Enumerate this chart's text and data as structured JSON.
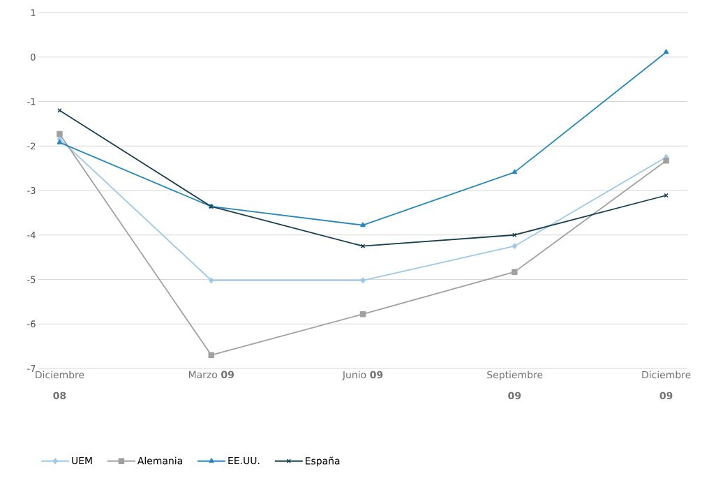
{
  "chart_data": {
    "type": "line",
    "categories": [
      "Diciembre **08**",
      "Marzo **09**",
      "Junio **09**",
      "Septiembre **09**",
      "Diciembre **09**"
    ],
    "series": [
      {
        "name": "UEM",
        "color": "#9dc8e8",
        "marker": "diamond",
        "values": [
          -1.84,
          -5.02,
          -5.02,
          -4.25,
          -2.25
        ]
      },
      {
        "name": "Alemania",
        "color": "#a0a0a0",
        "marker": "square",
        "values": [
          -1.73,
          -6.7,
          -5.78,
          -4.83,
          -2.33
        ]
      },
      {
        "name": "EE.UU.",
        "color": "#2589b9",
        "marker": "triangle",
        "values": [
          -1.92,
          -3.36,
          -3.78,
          -2.59,
          0.11
        ]
      },
      {
        "name": "España",
        "color": "#173f4f",
        "marker": "cross",
        "values": [
          -1.2,
          -3.36,
          -4.25,
          -4.0,
          -3.11
        ]
      }
    ],
    "ylim": [
      -7,
      1
    ],
    "yticks": [
      -7,
      -6,
      -5,
      -4,
      -3,
      -2,
      -1,
      0,
      1
    ],
    "grid": "y",
    "legend": "bottom left",
    "line_style": "solid"
  }
}
